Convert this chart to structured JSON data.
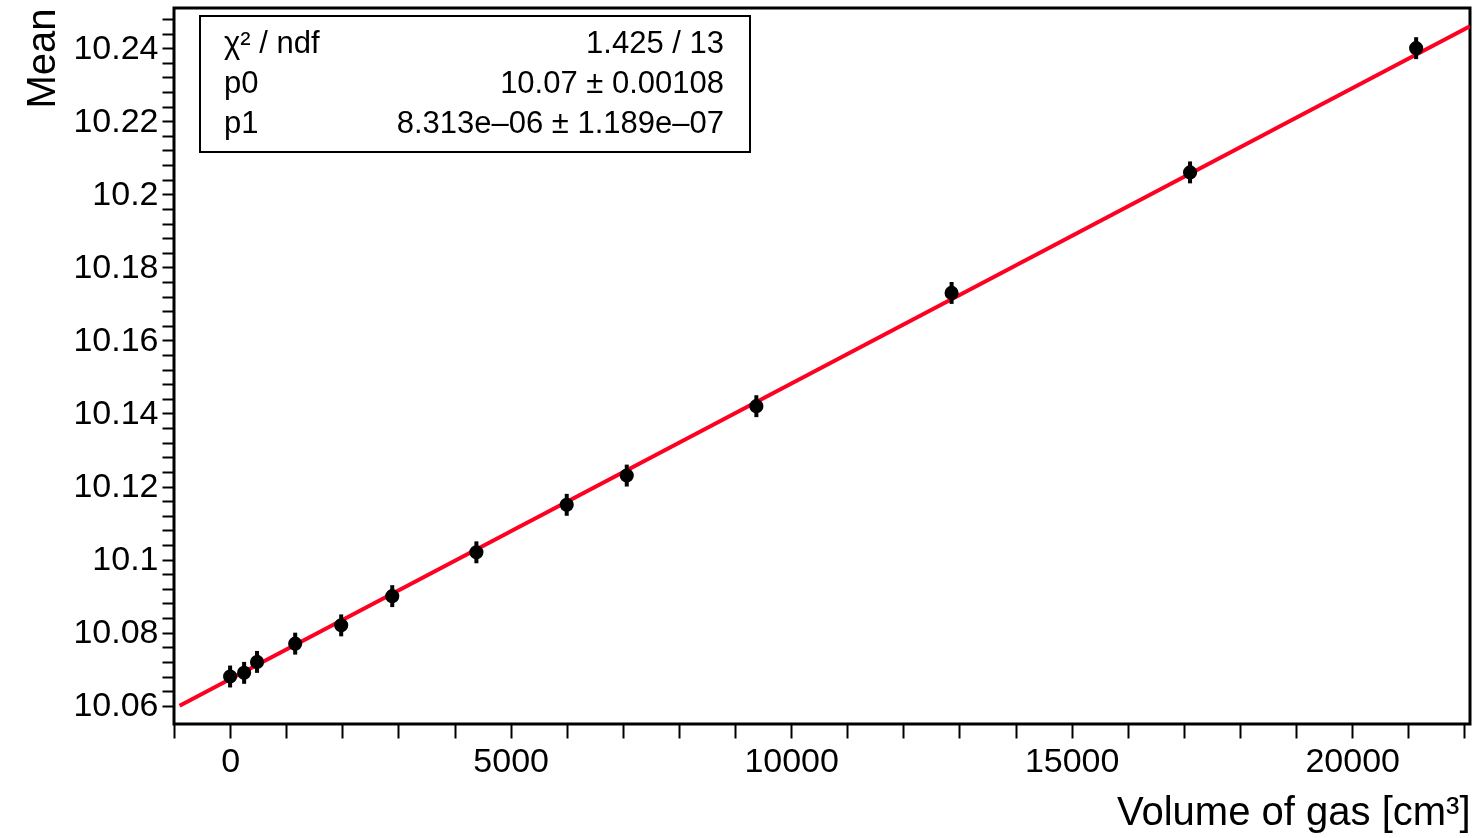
{
  "chart_data": {
    "type": "scatter",
    "xlabel": "Volume of gas [cm³]",
    "ylabel": "Mean",
    "xlim": [
      -1000,
      22100
    ],
    "ylim": [
      10.055,
      10.251
    ],
    "xticks": [
      {
        "value": -1000,
        "label": null
      },
      0,
      {
        "value": 1000,
        "label": null
      },
      {
        "value": 2000,
        "label": null
      },
      {
        "value": 3000,
        "label": null
      },
      {
        "value": 4000,
        "label": null
      },
      5000,
      {
        "value": 6000,
        "label": null
      },
      {
        "value": 7000,
        "label": null
      },
      {
        "value": 8000,
        "label": null
      },
      {
        "value": 9000,
        "label": null
      },
      10000,
      {
        "value": 11000,
        "label": null
      },
      {
        "value": 12000,
        "label": null
      },
      {
        "value": 13000,
        "label": null
      },
      {
        "value": 14000,
        "label": null
      },
      15000,
      {
        "value": 16000,
        "label": null
      },
      {
        "value": 17000,
        "label": null
      },
      {
        "value": 18000,
        "label": null
      },
      {
        "value": 19000,
        "label": null
      },
      20000,
      {
        "value": 21000,
        "label": null
      },
      {
        "value": 22000,
        "label": null
      }
    ],
    "yticks": [
      10.06,
      {
        "value": 10.064,
        "label": null
      },
      {
        "value": 10.068,
        "label": null
      },
      {
        "value": 10.072,
        "label": null
      },
      {
        "value": 10.076,
        "label": null
      },
      10.08,
      {
        "value": 10.084,
        "label": null
      },
      {
        "value": 10.088,
        "label": null
      },
      {
        "value": 10.092,
        "label": null
      },
      {
        "value": 10.096,
        "label": null
      },
      10.1,
      {
        "value": 10.104,
        "label": null
      },
      {
        "value": 10.108,
        "label": null
      },
      {
        "value": 10.112,
        "label": null
      },
      {
        "value": 10.116,
        "label": null
      },
      10.12,
      {
        "value": 10.124,
        "label": null
      },
      {
        "value": 10.128,
        "label": null
      },
      {
        "value": 10.132,
        "label": null
      },
      {
        "value": 10.136,
        "label": null
      },
      10.14,
      {
        "value": 10.144,
        "label": null
      },
      {
        "value": 10.148,
        "label": null
      },
      {
        "value": 10.152,
        "label": null
      },
      {
        "value": 10.156,
        "label": null
      },
      10.16,
      {
        "value": 10.164,
        "label": null
      },
      {
        "value": 10.168,
        "label": null
      },
      {
        "value": 10.172,
        "label": null
      },
      {
        "value": 10.176,
        "label": null
      },
      10.18,
      {
        "value": 10.184,
        "label": null
      },
      {
        "value": 10.188,
        "label": null
      },
      {
        "value": 10.192,
        "label": null
      },
      {
        "value": 10.196,
        "label": null
      },
      10.2,
      {
        "value": 10.204,
        "label": null
      },
      {
        "value": 10.208,
        "label": null
      },
      {
        "value": 10.212,
        "label": null
      },
      {
        "value": 10.216,
        "label": null
      },
      10.22,
      {
        "value": 10.224,
        "label": null
      },
      {
        "value": 10.228,
        "label": null
      },
      {
        "value": 10.232,
        "label": null
      },
      {
        "value": 10.236,
        "label": null
      },
      10.24,
      {
        "value": 10.244,
        "label": null
      },
      {
        "value": 10.248,
        "label": null
      }
    ],
    "grid": false,
    "series": [
      {
        "color": "#000000",
        "marker": "circle",
        "x": [
          0,
          250,
          480,
          1160,
          1980,
          2890,
          4390,
          6000,
          7070,
          9380,
          12860,
          17110,
          21140
        ],
        "values": [
          10.068,
          10.069,
          10.072,
          10.077,
          10.082,
          10.09,
          10.102,
          10.115,
          10.123,
          10.142,
          10.173,
          10.206,
          10.24
        ],
        "errors": [
          0.003,
          0.003,
          0.003,
          0.003,
          0.003,
          0.003,
          0.003,
          0.003,
          0.003,
          0.003,
          0.003,
          0.003,
          0.003
        ]
      },
      {
        "type": "line",
        "color": "#ff0022",
        "line_style": "solid",
        "marker": "none",
        "x": [
          -900,
          22100
        ],
        "values": [
          10.06,
          10.246
        ]
      }
    ],
    "annotations": [
      "χ² / ndf",
      "1.425 / 13",
      "p0",
      "10.07 ± 0.00108",
      "p1",
      "8.313e–06 ± 1.189e–07"
    ]
  }
}
